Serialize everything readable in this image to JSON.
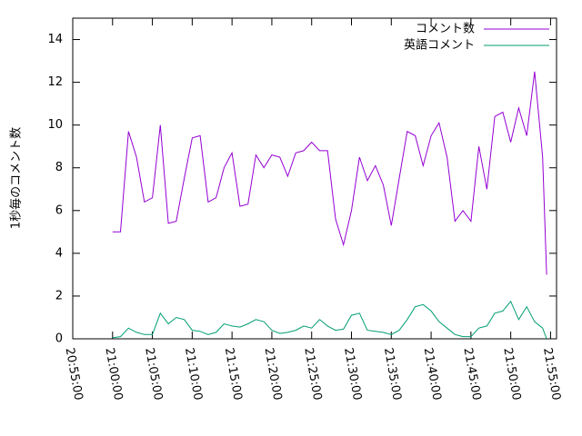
{
  "chart_data": {
    "type": "line",
    "ylabel": "1秒毎のコメント数",
    "x": [
      "21:00:00",
      "21:01:00",
      "21:02:00",
      "21:03:00",
      "21:04:00",
      "21:05:00",
      "21:06:00",
      "21:07:00",
      "21:08:00",
      "21:09:00",
      "21:10:00",
      "21:11:00",
      "21:12:00",
      "21:13:00",
      "21:14:00",
      "21:15:00",
      "21:16:00",
      "21:17:00",
      "21:18:00",
      "21:19:00",
      "21:20:00",
      "21:21:00",
      "21:22:00",
      "21:23:00",
      "21:24:00",
      "21:25:00",
      "21:26:00",
      "21:27:00",
      "21:28:00",
      "21:29:00",
      "21:30:00",
      "21:31:00",
      "21:32:00",
      "21:33:00",
      "21:34:00",
      "21:35:00",
      "21:36:00",
      "21:37:00",
      "21:38:00",
      "21:39:00",
      "21:40:00",
      "21:41:00",
      "21:42:00",
      "21:43:00",
      "21:44:00",
      "21:45:00",
      "21:46:00",
      "21:47:00",
      "21:48:00",
      "21:49:00",
      "21:50:00",
      "21:51:00",
      "21:52:00",
      "21:53:00",
      "21:54:00",
      "21:54:30"
    ],
    "series": [
      {
        "name": "コメント数",
        "color": "#9400d3",
        "values": [
          5,
          5,
          9.7,
          8.5,
          6.4,
          6.6,
          10,
          5.4,
          5.5,
          7.5,
          9.4,
          9.5,
          6.4,
          6.6,
          8,
          8.7,
          6.2,
          6.3,
          8.6,
          8,
          8.6,
          8.5,
          7.6,
          8.7,
          8.8,
          9.2,
          8.8,
          8.8,
          5.6,
          4.4,
          6,
          8.5,
          7.4,
          8.1,
          7.2,
          5.3,
          7.5,
          9.7,
          9.5,
          8.1,
          9.5,
          10.1,
          8.5,
          5.5,
          6,
          5.5,
          9,
          7,
          10.4,
          10.6,
          9.2,
          10.8,
          9.5,
          12.5,
          8.5,
          3
        ]
      },
      {
        "name": "英語コメント",
        "color": "#009e73",
        "values": [
          0.05,
          0.1,
          0.5,
          0.3,
          0.2,
          0.2,
          1.2,
          0.7,
          1,
          0.9,
          0.4,
          0.35,
          0.2,
          0.3,
          0.7,
          0.6,
          0.55,
          0.7,
          0.9,
          0.8,
          0.4,
          0.25,
          0.3,
          0.4,
          0.6,
          0.5,
          0.9,
          0.6,
          0.4,
          0.45,
          1.1,
          1.2,
          0.4,
          0.35,
          0.3,
          0.2,
          0.4,
          0.9,
          1.5,
          1.6,
          1.3,
          0.8,
          0.5,
          0.2,
          0.1,
          0.1,
          0.5,
          0.6,
          1.2,
          1.3,
          1.75,
          0.9,
          1.5,
          0.8,
          0.5,
          0
        ]
      }
    ],
    "xlim": [
      "20:55:00",
      "21:55:45"
    ],
    "xticks": [
      "20:55:00",
      "21:00:00",
      "21:05:00",
      "21:10:00",
      "21:15:00",
      "21:20:00",
      "21:25:00",
      "21:30:00",
      "21:35:00",
      "21:40:00",
      "21:45:00",
      "21:50:00",
      "21:55:00"
    ],
    "ylim": [
      0,
      15
    ],
    "yticks": [
      0,
      2,
      4,
      6,
      8,
      10,
      12,
      14
    ],
    "legend": "top-right"
  }
}
